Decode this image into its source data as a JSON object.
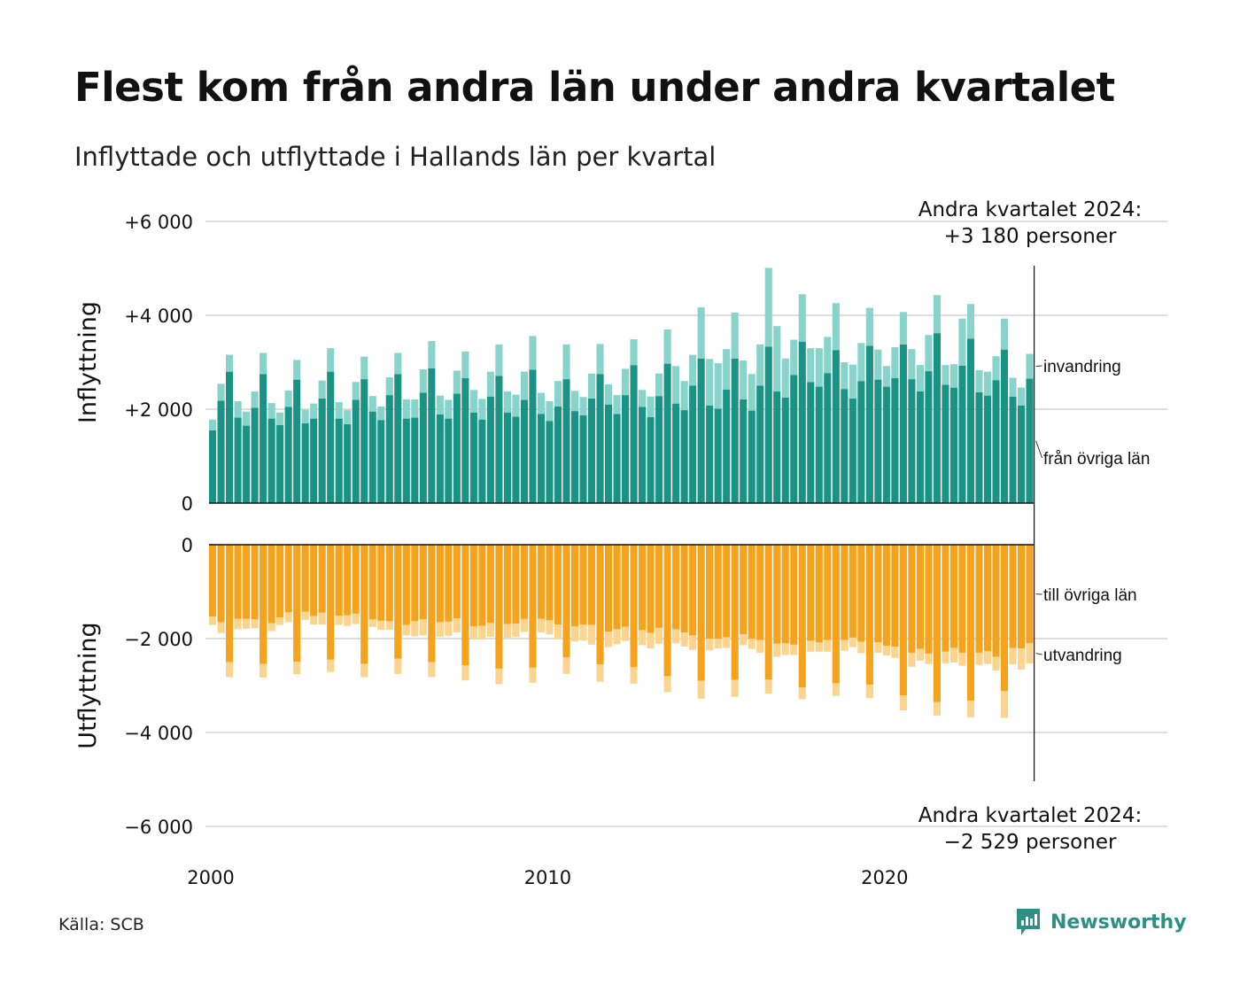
{
  "title": "Flest kom från andra län under andra kvartalet",
  "subtitle": "Inflyttade och utflyttade i Hallands län per kvartal",
  "source": "Källa: SCB",
  "brand": "Newsworthy",
  "colors": {
    "in_other_counties": "#1a9385",
    "in_immigration": "#88d3ca",
    "out_other_counties": "#f5a31d",
    "out_emigration": "#fbd58f",
    "grid": "#dddddd"
  },
  "chart_data": {
    "type": "bar",
    "stacked": true,
    "start_period": "2000 Q1",
    "x_ticks": [
      "2000",
      "2010",
      "2020"
    ],
    "panels": [
      {
        "ylabel": "Inflyttning",
        "y_ticks": [
          "+6 000",
          "+4 000",
          "+2 000",
          "0"
        ],
        "ylim": [
          0,
          6000
        ],
        "annotation": [
          "Andra kvartalet 2024:",
          "+3 180 personer"
        ],
        "series": [
          {
            "name": "från övriga län",
            "label": "från övriga län",
            "values": [
              1550,
              2180,
              2800,
              1820,
              1650,
              2030,
              2750,
              1800,
              1660,
              2050,
              2630,
              1700,
              1800,
              2230,
              2800,
              1800,
              1680,
              2200,
              2640,
              1950,
              1770,
              2300,
              2750,
              1800,
              1820,
              2350,
              2870,
              1890,
              1800,
              2330,
              2660,
              1930,
              1780,
              2270,
              2710,
              1930,
              1840,
              2200,
              2840,
              1900,
              1750,
              2060,
              2640,
              1960,
              1870,
              2230,
              2750,
              2100,
              1900,
              2300,
              2940,
              2050,
              1830,
              2280,
              2970,
              2120,
              1980,
              2500,
              3080,
              2080,
              2010,
              2420,
              3080,
              2210,
              1970,
              2500,
              3330,
              2380,
              2250,
              2730,
              3440,
              2580,
              2480,
              2770,
              3260,
              2430,
              2230,
              2600,
              3350,
              2630,
              2480,
              2660,
              3380,
              2640,
              2380,
              2810,
              3620,
              2520,
              2460,
              2930,
              3500,
              2360,
              2290,
              2620,
              3270,
              2270,
              2080,
              2650
            ],
            "total": 2650
          },
          {
            "name": "invandring",
            "label": "invandring",
            "values": [
              230,
              360,
              360,
              350,
              300,
              350,
              450,
              330,
              270,
              350,
              420,
              290,
              320,
              380,
              500,
              350,
              300,
              380,
              480,
              330,
              290,
              380,
              450,
              410,
              390,
              500,
              580,
              400,
              400,
              490,
              570,
              480,
              440,
              530,
              670,
              450,
              470,
              600,
              720,
              450,
              420,
              540,
              740,
              430,
              390,
              530,
              640,
              430,
              400,
              560,
              550,
              360,
              440,
              480,
              730,
              800,
              620,
              660,
              1090,
              990,
              970,
              860,
              980,
              830,
              780,
              880,
              1680,
              1390,
              830,
              750,
              1010,
              720,
              820,
              770,
              1000,
              570,
              720,
              810,
              810,
              640,
              440,
              660,
              690,
              640,
              560,
              770,
              810,
              420,
              500,
              1000,
              740,
              470,
              510,
              510,
              660,
              400,
              380,
              530
            ],
            "total": 530
          }
        ]
      },
      {
        "ylabel": "Utflyttning",
        "y_ticks": [
          "0",
          "−2 000",
          "−4 000",
          "−6 000"
        ],
        "ylim": [
          -6000,
          0
        ],
        "annotation": [
          "Andra kvartalet 2024:",
          "−2 529 personer"
        ],
        "series": [
          {
            "name": "till övriga län",
            "label": "till övriga län",
            "values": [
              -1530,
              -1650,
              -2500,
              -1580,
              -1580,
              -1590,
              -2540,
              -1670,
              -1550,
              -1440,
              -2490,
              -1430,
              -1520,
              -1450,
              -2450,
              -1510,
              -1500,
              -1470,
              -2540,
              -1590,
              -1620,
              -1630,
              -2430,
              -1710,
              -1630,
              -1590,
              -2500,
              -1650,
              -1640,
              -1570,
              -2570,
              -1740,
              -1730,
              -1660,
              -2640,
              -1690,
              -1680,
              -1580,
              -2620,
              -1580,
              -1610,
              -1700,
              -2400,
              -1740,
              -1700,
              -1710,
              -2550,
              -1850,
              -1800,
              -1750,
              -2610,
              -1820,
              -1880,
              -1770,
              -2800,
              -1800,
              -1870,
              -1930,
              -2900,
              -2000,
              -2000,
              -1970,
              -2880,
              -1910,
              -2000,
              -2030,
              -2870,
              -2110,
              -2100,
              -2130,
              -3040,
              -2050,
              -2080,
              -2030,
              -2950,
              -2030,
              -1980,
              -2070,
              -2980,
              -2080,
              -2150,
              -2170,
              -3210,
              -2300,
              -2220,
              -2320,
              -3350,
              -2280,
              -2200,
              -2300,
              -3320,
              -2300,
              -2270,
              -2390,
              -3120,
              -2200,
              -2210,
              -2100
            ],
            "total": -2100
          },
          {
            "name": "utvandring",
            "label": "utvandring",
            "values": [
              -180,
              -230,
              -320,
              -220,
              -210,
              -190,
              -290,
              -170,
              -160,
              -210,
              -270,
              -170,
              -180,
              -250,
              -260,
              -200,
              -230,
              -220,
              -280,
              -160,
              -190,
              -180,
              -320,
              -220,
              -320,
              -340,
              -320,
              -310,
              -300,
              -300,
              -320,
              -280,
              -280,
              -300,
              -330,
              -290,
              -280,
              -280,
              -320,
              -290,
              -300,
              -300,
              -350,
              -320,
              -340,
              -420,
              -370,
              -330,
              -320,
              -300,
              -350,
              -320,
              -330,
              -340,
              -340,
              -300,
              -300,
              -310,
              -380,
              -250,
              -210,
              -230,
              -360,
              -230,
              -220,
              -270,
              -300,
              -280,
              -250,
              -220,
              -250,
              -230,
              -200,
              -250,
              -270,
              -230,
              -200,
              -240,
              -290,
              -220,
              -210,
              -240,
              -320,
              -300,
              -250,
              -220,
              -290,
              -250,
              -310,
              -280,
              -360,
              -260,
              -270,
              -290,
              -570,
              -350,
              -450,
              -429
            ],
            "total": -429
          }
        ]
      }
    ]
  }
}
